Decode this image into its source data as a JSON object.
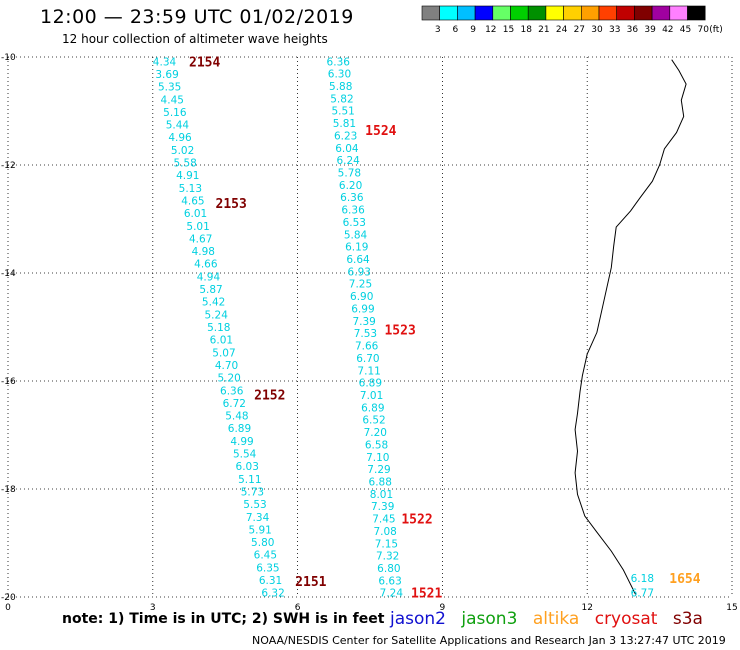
{
  "header": {
    "title": "12:00 — 23:59 UTC 01/02/2019",
    "subtitle": "12 hour collection of altimeter wave heights"
  },
  "color_scale": {
    "unit": "(ft)",
    "labels": [
      "3",
      "6",
      "9",
      "12",
      "15",
      "18",
      "21",
      "24",
      "27",
      "30",
      "33",
      "36",
      "39",
      "42",
      "45",
      "70"
    ],
    "colors": [
      "#808080",
      "#00ffff",
      "#00bfff",
      "#0000ff",
      "#66ff66",
      "#00d000",
      "#009000",
      "#ffff00",
      "#ffd000",
      "#ffa000",
      "#ff4000",
      "#c00000",
      "#800000",
      "#a000a0",
      "#ff80ff",
      "#000000"
    ]
  },
  "footer": {
    "note": "note: 1) Time is in UTC; 2) SWH is in feet",
    "satellites": [
      {
        "name": "jason2",
        "color": "#1010d0"
      },
      {
        "name": "jason3",
        "color": "#10a010"
      },
      {
        "name": "altika",
        "color": "#ffa020"
      },
      {
        "name": "cryosat",
        "color": "#e01010"
      },
      {
        "name": "s3a",
        "color": "#800000"
      }
    ],
    "credit": "NOAA/NESDIS Center for Satellite Applications and Research    Jan  3 13:27:47 UTC 2019"
  },
  "chart_data": {
    "type": "scatter",
    "title": "12:00 — 23:59 UTC 01/02/2019",
    "subtitle": "12 hour collection of altimeter wave heights",
    "xlim": [
      0,
      15
    ],
    "ylim": [
      -20,
      -10
    ],
    "x_ticks": [
      "0",
      "3",
      "6",
      "9",
      "12",
      "15"
    ],
    "y_ticks": [
      "-10",
      "-12",
      "-14",
      "-16",
      "-18",
      "-20"
    ],
    "grid": true,
    "value_color": "#00d0e0",
    "tracks": [
      {
        "values": [
          "4.34",
          "3.69",
          "5.35",
          "4.45",
          "5.16",
          "5.44",
          "4.96",
          "5.02",
          "5.58",
          "4.91",
          "5.13",
          "4.65",
          "6.01",
          "5.01",
          "4.67",
          "4.98",
          "4.66",
          "4.94",
          "5.87",
          "5.42",
          "5.24",
          "5.18",
          "6.01",
          "5.07",
          "4.70",
          "5.20",
          "6.36",
          "6.72",
          "5.48",
          "6.89",
          "4.99",
          "5.54",
          "6.03",
          "5.11",
          "5.73",
          "5.53",
          "7.34",
          "5.91",
          "5.80",
          "6.45",
          "6.35",
          "6.31",
          "6.32"
        ],
        "start": [
          3.0,
          -10.08
        ],
        "end": [
          5.25,
          -19.92
        ],
        "pass_labels": [
          {
            "text": "2154",
            "x": 3.75,
            "y": -10.08,
            "color": "#800000"
          },
          {
            "text": "2153",
            "x": 4.3,
            "y": -12.7,
            "color": "#800000"
          },
          {
            "text": "2152",
            "x": 5.1,
            "y": -16.25,
            "color": "#800000"
          },
          {
            "text": "2151",
            "x": 5.95,
            "y": -19.7,
            "color": "#800000"
          }
        ]
      },
      {
        "values": [
          "6.36",
          "6.30",
          "5.88",
          "5.82",
          "5.51",
          "5.81",
          "6.23",
          "6.04",
          "6.24",
          "5.78",
          "6.20",
          "6.36",
          "6.36",
          "6.53",
          "5.84",
          "6.19",
          "6.64",
          "6.93",
          "7.25",
          "6.90",
          "6.99",
          "7.39",
          "7.53",
          "7.66",
          "6.70",
          "7.11",
          "6.89",
          "7.01",
          "6.89",
          "6.52",
          "7.20",
          "6.58",
          "7.10",
          "7.29",
          "6.88",
          "8.01",
          "7.39",
          "7.45",
          "7.08",
          "7.15",
          "7.32",
          "6.80",
          "6.63",
          "7.24"
        ],
        "start": [
          6.6,
          -10.08
        ],
        "end": [
          7.7,
          -19.92
        ],
        "pass_labels": [
          {
            "text": "1524",
            "x": 7.4,
            "y": -11.35,
            "color": "#e01010"
          },
          {
            "text": "1523",
            "x": 7.8,
            "y": -15.05,
            "color": "#e01010"
          },
          {
            "text": "1522",
            "x": 8.15,
            "y": -18.55,
            "color": "#e01010"
          },
          {
            "text": "1521",
            "x": 8.35,
            "y": -19.92,
            "color": "#e01010"
          }
        ]
      },
      {
        "values": [
          "6.18",
          "6.77"
        ],
        "start": [
          12.9,
          -19.65
        ],
        "end": [
          12.9,
          -19.92
        ],
        "pass_labels": [
          {
            "text": "1654",
            "x": 13.7,
            "y": -19.65,
            "color": "#ffa020"
          }
        ]
      }
    ],
    "coastline": [
      [
        13.75,
        -10.05
      ],
      [
        13.9,
        -10.25
      ],
      [
        14.05,
        -10.5
      ],
      [
        13.95,
        -10.8
      ],
      [
        14.0,
        -11.1
      ],
      [
        13.85,
        -11.4
      ],
      [
        13.6,
        -11.7
      ],
      [
        13.5,
        -12.0
      ],
      [
        13.35,
        -12.3
      ],
      [
        13.1,
        -12.6
      ],
      [
        12.9,
        -12.85
      ],
      [
        12.6,
        -13.15
      ],
      [
        12.55,
        -13.5
      ],
      [
        12.5,
        -13.9
      ],
      [
        12.4,
        -14.3
      ],
      [
        12.3,
        -14.7
      ],
      [
        12.2,
        -15.1
      ],
      [
        12.0,
        -15.5
      ],
      [
        11.9,
        -15.9
      ],
      [
        11.85,
        -16.2
      ],
      [
        11.8,
        -16.6
      ],
      [
        11.75,
        -16.9
      ],
      [
        11.8,
        -17.3
      ],
      [
        11.75,
        -17.7
      ],
      [
        11.8,
        -18.1
      ],
      [
        11.95,
        -18.5
      ],
      [
        12.2,
        -18.8
      ],
      [
        12.5,
        -19.15
      ],
      [
        12.75,
        -19.5
      ],
      [
        13.0,
        -19.95
      ]
    ]
  }
}
